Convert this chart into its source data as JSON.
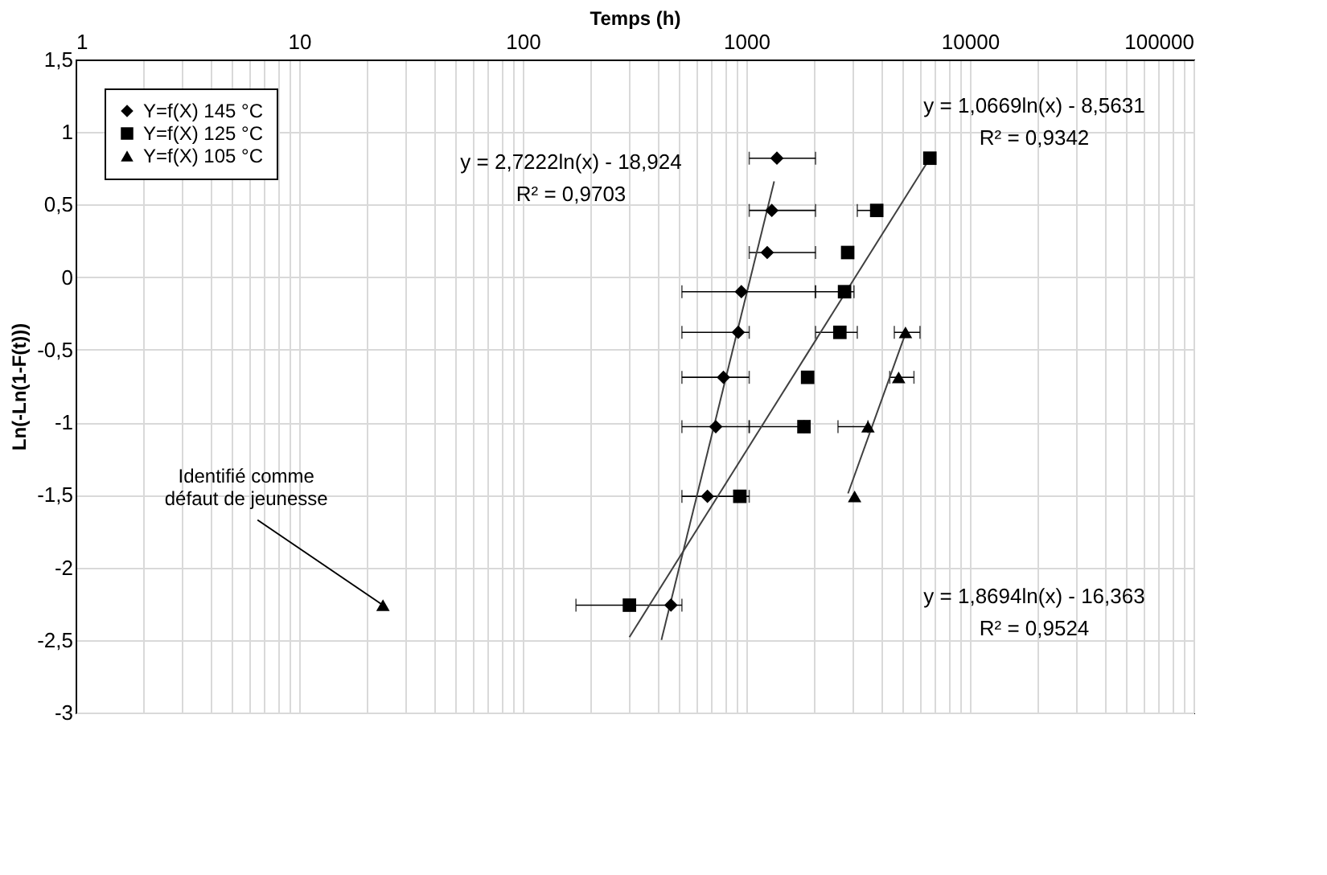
{
  "chart_data": {
    "type": "scatter",
    "xlabel": "Temps (h)",
    "ylabel": "Ln(-Ln(1-F(t)))",
    "log": "x",
    "grid": true,
    "legend": "top left",
    "xlim": [
      1,
      100000
    ],
    "ylim": [
      -3,
      1.5
    ],
    "xticks": [
      1,
      {
        "value": 2,
        "label": null
      },
      {
        "value": 3,
        "label": null
      },
      {
        "value": 4,
        "label": null
      },
      {
        "value": 5,
        "label": null
      },
      {
        "value": 6,
        "label": null
      },
      {
        "value": 7,
        "label": null
      },
      {
        "value": 8,
        "label": null
      },
      {
        "value": 9,
        "label": null
      },
      10,
      {
        "value": 20,
        "label": null
      },
      {
        "value": 30,
        "label": null
      },
      {
        "value": 40,
        "label": null
      },
      {
        "value": 50,
        "label": null
      },
      {
        "value": 60,
        "label": null
      },
      {
        "value": 70,
        "label": null
      },
      {
        "value": 80,
        "label": null
      },
      {
        "value": 90,
        "label": null
      },
      100,
      {
        "value": 200,
        "label": null
      },
      {
        "value": 300,
        "label": null
      },
      {
        "value": 400,
        "label": null
      },
      {
        "value": 500,
        "label": null
      },
      {
        "value": 600,
        "label": null
      },
      {
        "value": 700,
        "label": null
      },
      {
        "value": 800,
        "label": null
      },
      {
        "value": 900,
        "label": null
      },
      1000,
      {
        "value": 2000,
        "label": null
      },
      {
        "value": 3000,
        "label": null
      },
      {
        "value": 4000,
        "label": null
      },
      {
        "value": 5000,
        "label": null
      },
      {
        "value": 6000,
        "label": null
      },
      {
        "value": 7000,
        "label": null
      },
      {
        "value": 8000,
        "label": null
      },
      {
        "value": 9000,
        "label": null
      },
      10000,
      {
        "value": 20000,
        "label": null
      },
      {
        "value": 30000,
        "label": null
      },
      {
        "value": 40000,
        "label": null
      },
      {
        "value": 50000,
        "label": null
      },
      {
        "value": 60000,
        "label": null
      },
      {
        "value": 70000,
        "label": null
      },
      {
        "value": 80000,
        "label": null
      },
      {
        "value": 90000,
        "label": null
      },
      100000
    ],
    "yticks": [
      {
        "value": 1.5,
        "label": "1,5"
      },
      1,
      {
        "value": 0.5,
        "label": "0,5"
      },
      0,
      {
        "value": -0.5,
        "label": "-0,5"
      },
      -1,
      {
        "value": -1.5,
        "label": "-1,5"
      },
      -2,
      {
        "value": -2.5,
        "label": "-2,5"
      },
      -3
    ],
    "series": [
      {
        "name": "Y=f(X) 145 °C",
        "type": "scatter",
        "marker": "diamond",
        "color": "#000000",
        "x": [
          1370,
          1300,
          1240,
          950,
          920,
          790,
          730,
          670,
          460
        ],
        "values": [
          0.82,
          0.46,
          0.17,
          -0.1,
          -0.38,
          -0.69,
          -1.03,
          -1.51,
          -2.26
        ],
        "xerrors": [
          [
            1030,
            2040
          ],
          [
            1030,
            2040
          ],
          [
            1030,
            2040
          ],
          [
            515,
            2040
          ],
          [
            515,
            1030
          ],
          [
            515,
            1030
          ],
          [
            515,
            1030
          ],
          [
            515,
            1030
          ],
          null
        ]
      },
      {
        "name": "Y=f(X) 125 °C",
        "type": "scatter",
        "marker": "square",
        "color": "#000000",
        "x": [
          6620,
          3830,
          2840,
          2750,
          2620,
          1880,
          1810,
          935,
          300
        ],
        "values": [
          0.82,
          0.46,
          0.17,
          -0.1,
          -0.38,
          -0.69,
          -1.03,
          -1.51,
          -2.26
        ],
        "xerrors": [
          null,
          [
            3135,
            4000
          ],
          null,
          [
            2040,
            3030
          ],
          [
            2040,
            3135
          ],
          null,
          [
            1030,
            1810
          ],
          null,
          [
            173,
            515
          ]
        ]
      },
      {
        "name": "Y=f(X) 105 °C",
        "type": "scatter",
        "marker": "triangle",
        "color": "#000000",
        "x": [
          5150,
          4800,
          3500,
          3050,
          23.7
        ],
        "values": [
          -0.38,
          -0.69,
          -1.03,
          -1.51,
          -2.26
        ],
        "xerrors": [
          [
            4590,
            5980
          ],
          [
            4380,
            5620
          ],
          [
            2570,
            3500
          ],
          null,
          null
        ]
      },
      {
        "type": "line",
        "color": "#404040",
        "x": [
          417,
          1332
        ],
        "values": [
          -2.5,
          0.66
        ]
      },
      {
        "type": "line",
        "color": "#404040",
        "x": [
          300,
          6620
        ],
        "values": [
          -2.48,
          0.82
        ]
      },
      {
        "type": "line",
        "color": "#404040",
        "x": [
          2850,
          5200
        ],
        "values": [
          -1.49,
          -0.37
        ]
      }
    ],
    "annotations": [
      "y = 2,7222ln(x) - 18,924\nR² = 0,9703",
      "y = 1,0669ln(x) - 8,5631\nR² = 0,9342",
      "y = 1,8694ln(x) - 16,363\nR² = 0,9524",
      {
        "text": "Identifié comme\ndéfaut de jeunesse",
        "x": 23.7,
        "y": -2.26
      }
    ]
  }
}
